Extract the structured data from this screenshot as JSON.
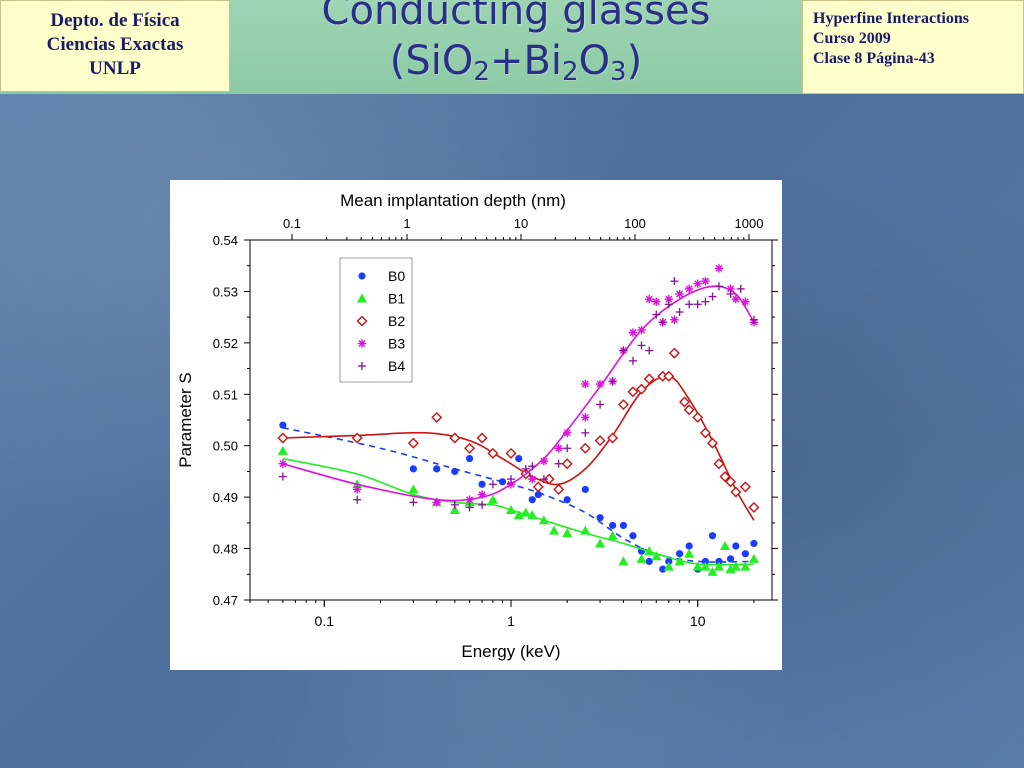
{
  "header": {
    "left_lines": [
      "Depto. de Física",
      "Ciencias Exactas",
      "UNLP"
    ],
    "title_line1": "Conducting glasses",
    "title_line2_parts": [
      "(SiO",
      "2",
      "+Bi",
      "2",
      "O",
      "3",
      ")"
    ],
    "right_lines": [
      "Hyperfine Interactions",
      "Curso 2009",
      "Clase 8  Página-43"
    ]
  },
  "chart_data": {
    "type": "scatter",
    "xlabel": "Energy (keV)",
    "ylabel": "Parameter S",
    "x_top_label": "Mean implantation depth (nm)",
    "xscale": "log",
    "xlim": [
      0.04,
      25
    ],
    "ylim": [
      0.47,
      0.54
    ],
    "x_ticks": [
      "0.1",
      "1",
      "10"
    ],
    "x_ticks_values": [
      0.1,
      1,
      10
    ],
    "x_top_ticks": [
      "0.1",
      "1",
      "10",
      "100",
      "1000"
    ],
    "y_ticks": [
      "0.47",
      "0.48",
      "0.49",
      "0.50",
      "0.51",
      "0.52",
      "0.53",
      "0.54"
    ],
    "y_ticks_values": [
      0.47,
      0.48,
      0.49,
      0.5,
      0.51,
      0.52,
      0.53,
      0.54
    ],
    "legend_position": "top-left",
    "series": [
      {
        "name": "B0",
        "marker": "circle",
        "color": "#1a3cff",
        "points": [
          [
            0.06,
            0.504
          ],
          [
            0.3,
            0.4955
          ],
          [
            0.4,
            0.4955
          ],
          [
            0.5,
            0.495
          ],
          [
            0.6,
            0.4975
          ],
          [
            0.7,
            0.4925
          ],
          [
            0.9,
            0.493
          ],
          [
            1.1,
            0.4975
          ],
          [
            1.3,
            0.4895
          ],
          [
            1.4,
            0.4905
          ],
          [
            2.0,
            0.4895
          ],
          [
            2.5,
            0.4915
          ],
          [
            3.0,
            0.486
          ],
          [
            3.5,
            0.4845
          ],
          [
            4.0,
            0.4845
          ],
          [
            4.5,
            0.4825
          ],
          [
            5.0,
            0.4795
          ],
          [
            5.5,
            0.4775
          ],
          [
            6.5,
            0.476
          ],
          [
            7.0,
            0.4775
          ],
          [
            8.0,
            0.479
          ],
          [
            9.0,
            0.4805
          ],
          [
            10.0,
            0.476
          ],
          [
            11.0,
            0.4775
          ],
          [
            12.0,
            0.4825
          ],
          [
            13.0,
            0.4775
          ],
          [
            15.0,
            0.478
          ],
          [
            16.0,
            0.4805
          ],
          [
            18.0,
            0.479
          ],
          [
            20.0,
            0.481
          ]
        ],
        "fit": [
          [
            0.06,
            0.5035
          ],
          [
            0.2,
            0.4995
          ],
          [
            0.5,
            0.4955
          ],
          [
            1.0,
            0.4925
          ],
          [
            1.5,
            0.4905
          ],
          [
            2.5,
            0.487
          ],
          [
            4.0,
            0.482
          ],
          [
            6.0,
            0.479
          ],
          [
            10.0,
            0.4775
          ],
          [
            20.0,
            0.4775
          ]
        ]
      },
      {
        "name": "B1",
        "marker": "triangle",
        "color": "#22ee22",
        "points": [
          [
            0.06,
            0.499
          ],
          [
            0.15,
            0.4925
          ],
          [
            0.3,
            0.4915
          ],
          [
            0.4,
            0.489
          ],
          [
            0.5,
            0.4875
          ],
          [
            0.6,
            0.489
          ],
          [
            0.8,
            0.4895
          ],
          [
            1.0,
            0.4875
          ],
          [
            1.1,
            0.4865
          ],
          [
            1.2,
            0.487
          ],
          [
            1.3,
            0.4865
          ],
          [
            1.5,
            0.4855
          ],
          [
            1.7,
            0.4835
          ],
          [
            2.0,
            0.483
          ],
          [
            2.5,
            0.4835
          ],
          [
            3.0,
            0.481
          ],
          [
            3.5,
            0.4825
          ],
          [
            4.0,
            0.4775
          ],
          [
            5.0,
            0.478
          ],
          [
            5.5,
            0.4795
          ],
          [
            6.0,
            0.4785
          ],
          [
            7.0,
            0.4765
          ],
          [
            8.0,
            0.4775
          ],
          [
            9.0,
            0.479
          ],
          [
            10.0,
            0.4765
          ],
          [
            11.0,
            0.4765
          ],
          [
            12.0,
            0.4755
          ],
          [
            13.0,
            0.4765
          ],
          [
            14.0,
            0.4805
          ],
          [
            15.0,
            0.476
          ],
          [
            16.0,
            0.4765
          ],
          [
            18.0,
            0.4765
          ],
          [
            20.0,
            0.478
          ]
        ],
        "fit": [
          [
            0.06,
            0.4975
          ],
          [
            0.15,
            0.4945
          ],
          [
            0.3,
            0.4905
          ],
          [
            0.5,
            0.489
          ],
          [
            0.8,
            0.4885
          ],
          [
            1.0,
            0.4875
          ],
          [
            1.5,
            0.4855
          ],
          [
            2.5,
            0.483
          ],
          [
            4.0,
            0.481
          ],
          [
            6.0,
            0.479
          ],
          [
            10.0,
            0.477
          ],
          [
            20.0,
            0.477
          ]
        ]
      },
      {
        "name": "B2",
        "marker": "diamond",
        "color": "#cc1111",
        "points": [
          [
            0.06,
            0.5015
          ],
          [
            0.15,
            0.5015
          ],
          [
            0.3,
            0.5005
          ],
          [
            0.4,
            0.5055
          ],
          [
            0.5,
            0.5015
          ],
          [
            0.6,
            0.4995
          ],
          [
            0.7,
            0.5015
          ],
          [
            0.8,
            0.4985
          ],
          [
            1.0,
            0.4985
          ],
          [
            1.2,
            0.4945
          ],
          [
            1.4,
            0.492
          ],
          [
            1.6,
            0.4935
          ],
          [
            1.8,
            0.4915
          ],
          [
            2.0,
            0.4965
          ],
          [
            2.5,
            0.4995
          ],
          [
            3.0,
            0.501
          ],
          [
            3.5,
            0.5015
          ],
          [
            4.0,
            0.508
          ],
          [
            4.5,
            0.5105
          ],
          [
            5.0,
            0.511
          ],
          [
            5.5,
            0.513
          ],
          [
            6.5,
            0.5135
          ],
          [
            7.0,
            0.5135
          ],
          [
            7.5,
            0.518
          ],
          [
            8.5,
            0.5085
          ],
          [
            9.0,
            0.507
          ],
          [
            10.0,
            0.5055
          ],
          [
            11.0,
            0.5025
          ],
          [
            12.0,
            0.5005
          ],
          [
            13.0,
            0.4965
          ],
          [
            14.0,
            0.494
          ],
          [
            15.0,
            0.493
          ],
          [
            16.0,
            0.491
          ],
          [
            18.0,
            0.492
          ],
          [
            20.0,
            0.488
          ]
        ],
        "fit": [
          [
            0.06,
            0.5015
          ],
          [
            0.15,
            0.502
          ],
          [
            0.35,
            0.5025
          ],
          [
            0.6,
            0.501
          ],
          [
            0.9,
            0.4975
          ],
          [
            1.3,
            0.494
          ],
          [
            1.8,
            0.4925
          ],
          [
            2.5,
            0.4955
          ],
          [
            3.5,
            0.502
          ],
          [
            5.0,
            0.5105
          ],
          [
            7.0,
            0.5135
          ],
          [
            9.0,
            0.509
          ],
          [
            12.0,
            0.501
          ],
          [
            16.0,
            0.4915
          ],
          [
            20.0,
            0.4855
          ]
        ]
      },
      {
        "name": "B3",
        "marker": "asterisk",
        "color": "#dd11dd",
        "points": [
          [
            0.06,
            0.4965
          ],
          [
            0.15,
            0.4915
          ],
          [
            0.4,
            0.489
          ],
          [
            0.6,
            0.4895
          ],
          [
            0.7,
            0.4905
          ],
          [
            1.0,
            0.4925
          ],
          [
            1.3,
            0.4935
          ],
          [
            1.5,
            0.497
          ],
          [
            1.8,
            0.4995
          ],
          [
            2.0,
            0.5025
          ],
          [
            2.5,
            0.5055
          ],
          [
            2.5,
            0.512
          ],
          [
            3.0,
            0.512
          ],
          [
            3.5,
            0.5125
          ],
          [
            4.0,
            0.5185
          ],
          [
            4.5,
            0.522
          ],
          [
            5.0,
            0.5225
          ],
          [
            5.5,
            0.5285
          ],
          [
            6.0,
            0.528
          ],
          [
            6.5,
            0.524
          ],
          [
            7.0,
            0.5285
          ],
          [
            7.5,
            0.5245
          ],
          [
            8.0,
            0.5295
          ],
          [
            9.0,
            0.5305
          ],
          [
            10.0,
            0.5315
          ],
          [
            11.0,
            0.532
          ],
          [
            13.0,
            0.5345
          ],
          [
            15.0,
            0.5305
          ],
          [
            16.0,
            0.5285
          ],
          [
            18.0,
            0.528
          ],
          [
            20.0,
            0.524
          ]
        ],
        "fit": [
          [
            0.06,
            0.4965
          ],
          [
            0.15,
            0.4925
          ],
          [
            0.4,
            0.4895
          ],
          [
            0.7,
            0.49
          ],
          [
            1.0,
            0.4925
          ],
          [
            1.5,
            0.4975
          ],
          [
            2.0,
            0.503
          ],
          [
            3.0,
            0.5115
          ],
          [
            5.0,
            0.5225
          ],
          [
            8.0,
            0.5285
          ],
          [
            12.0,
            0.531
          ],
          [
            16.0,
            0.5295
          ],
          [
            20.0,
            0.524
          ]
        ]
      },
      {
        "name": "B4",
        "marker": "plus",
        "color": "#881199",
        "points": [
          [
            0.06,
            0.494
          ],
          [
            0.15,
            0.4895
          ],
          [
            0.3,
            0.489
          ],
          [
            0.5,
            0.4885
          ],
          [
            0.6,
            0.488
          ],
          [
            0.7,
            0.4885
          ],
          [
            0.8,
            0.4925
          ],
          [
            1.0,
            0.4935
          ],
          [
            1.2,
            0.4955
          ],
          [
            1.3,
            0.496
          ],
          [
            1.5,
            0.4935
          ],
          [
            1.8,
            0.4965
          ],
          [
            2.0,
            0.4995
          ],
          [
            2.5,
            0.5025
          ],
          [
            3.0,
            0.508
          ],
          [
            3.5,
            0.5125
          ],
          [
            4.0,
            0.5185
          ],
          [
            4.5,
            0.5165
          ],
          [
            5.0,
            0.5195
          ],
          [
            5.5,
            0.5185
          ],
          [
            6.0,
            0.5255
          ],
          [
            6.5,
            0.524
          ],
          [
            7.0,
            0.5275
          ],
          [
            7.5,
            0.532
          ],
          [
            8.0,
            0.526
          ],
          [
            9.0,
            0.5275
          ],
          [
            10.0,
            0.5275
          ],
          [
            11.0,
            0.528
          ],
          [
            12.0,
            0.529
          ],
          [
            13.0,
            0.531
          ],
          [
            15.0,
            0.5295
          ],
          [
            17.0,
            0.5305
          ],
          [
            20.0,
            0.5245
          ]
        ],
        "fit": []
      }
    ]
  }
}
